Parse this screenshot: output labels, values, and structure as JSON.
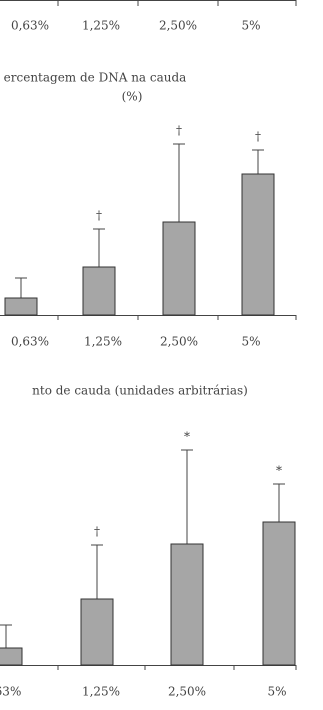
{
  "chart_data": [
    {
      "type": "bar",
      "categories": [
        "0,63%",
        "1,25%",
        "2,50%",
        "5%"
      ]
    },
    {
      "type": "bar",
      "title": "ercentagem de DNA na cauda",
      "subtitle": "(%)",
      "categories": [
        "0,63%",
        "1,25%",
        "2,50%",
        "5%"
      ],
      "values": [
        17,
        48,
        93,
        141
      ],
      "errors": [
        20,
        38,
        78,
        24
      ],
      "markers": [
        null,
        "†",
        "†",
        "†"
      ],
      "color": "#a6a6a6",
      "ylim": [
        0,
        200
      ]
    },
    {
      "type": "bar",
      "title": "nto de cauda (unidades arbitrárias)",
      "categories": [
        "63%",
        "1,25%",
        "2,50%",
        "5%"
      ],
      "values": [
        17,
        66,
        121,
        143
      ],
      "errors": [
        23,
        54,
        94,
        38
      ],
      "markers": [
        null,
        "†",
        "*",
        "*"
      ],
      "color": "#a6a6a6",
      "ylim": [
        0,
        200
      ]
    }
  ]
}
